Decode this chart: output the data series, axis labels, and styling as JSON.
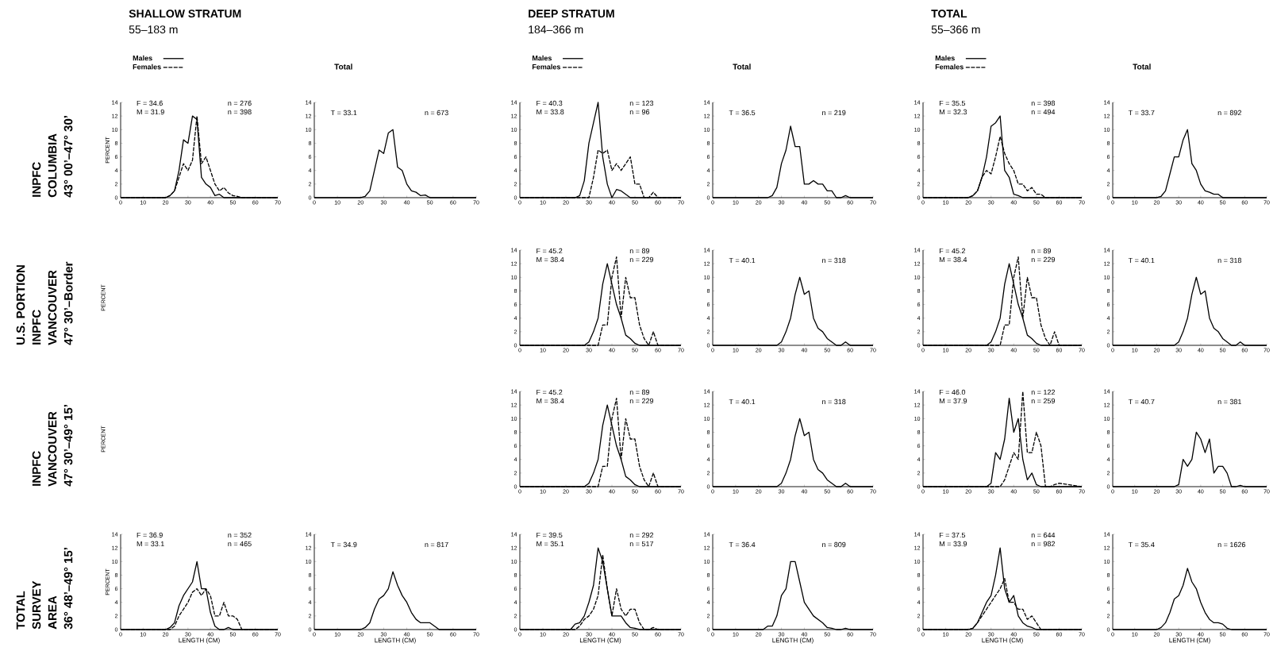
{
  "chart_data": [
    {
      "type": "other",
      "annotations": [
        "INPFC",
        "COLUMBIA",
        "43° 00’–47° 30’"
      ]
    },
    {
      "type": "line",
      "title": "SHALLOW STRATUM",
      "subtitle": "55–183 m",
      "ylabel": "PERCENT",
      "legend": "top left",
      "xlim": [
        0,
        70
      ],
      "ylim": [
        0,
        14
      ],
      "xticks": [
        0,
        10,
        20,
        30,
        40,
        50,
        60,
        70
      ],
      "yticks": [
        0,
        2,
        4,
        6,
        8,
        10,
        12,
        14
      ],
      "annotations": [
        "F = 34.6",
        "M = 31.9",
        "n = 276",
        "n = 398"
      ],
      "x": [
        0,
        20,
        22,
        24,
        26,
        28,
        30,
        32,
        34,
        36,
        38,
        40,
        42,
        44,
        46,
        48,
        50,
        52,
        54,
        56,
        58,
        60,
        70
      ],
      "series": [
        {
          "name": "Males",
          "color": "#000000",
          "line_style": "solid",
          "values": [
            0,
            0,
            0.3,
            1,
            4,
            8.5,
            8,
            12,
            11.5,
            3,
            2,
            1.5,
            0.3,
            0.5,
            0,
            0,
            0,
            0,
            0,
            0,
            0,
            0,
            0
          ]
        },
        {
          "name": "Females",
          "color": "#000000",
          "line_style": "dashed",
          "values": [
            0,
            0,
            0.3,
            1,
            3,
            5,
            4,
            5.5,
            12,
            5,
            6,
            4,
            2,
            1,
            1.5,
            0.7,
            0.3,
            0.2,
            0,
            0,
            0,
            0,
            0
          ]
        }
      ]
    },
    {
      "type": "line",
      "title": "Total",
      "xlim": [
        0,
        70
      ],
      "ylim": [
        0,
        14
      ],
      "xticks": [
        0,
        10,
        20,
        30,
        40,
        50,
        60,
        70
      ],
      "yticks": [
        0,
        2,
        4,
        6,
        8,
        10,
        12,
        14
      ],
      "annotations": [
        "T = 33.1",
        "n = 673"
      ],
      "x": [
        0,
        20,
        22,
        24,
        26,
        28,
        30,
        32,
        34,
        36,
        38,
        40,
        42,
        44,
        46,
        48,
        50,
        52,
        54,
        56,
        58,
        60,
        70
      ],
      "series": [
        {
          "color": "#000000",
          "line_style": "solid",
          "values": [
            0,
            0,
            0.2,
            1,
            4,
            7,
            6.5,
            9.5,
            10,
            4.5,
            4,
            2,
            1,
            0.8,
            0.3,
            0.4,
            0,
            0,
            0,
            0,
            0,
            0,
            0
          ]
        }
      ]
    },
    {
      "type": "line",
      "title": "DEEP STRATUM",
      "subtitle": "184–366 m",
      "legend": "top left",
      "xlim": [
        0,
        70
      ],
      "ylim": [
        0,
        14
      ],
      "xticks": [
        0,
        10,
        20,
        30,
        40,
        50,
        60,
        70
      ],
      "yticks": [
        0,
        2,
        4,
        6,
        8,
        10,
        12,
        14
      ],
      "annotations": [
        "F = 40.3",
        "M = 33.8",
        "n = 123",
        "n = 96"
      ],
      "x": [
        0,
        20,
        22,
        24,
        26,
        28,
        30,
        32,
        34,
        36,
        38,
        40,
        42,
        44,
        46,
        48,
        50,
        52,
        54,
        56,
        58,
        60,
        70
      ],
      "series": [
        {
          "name": "Males",
          "color": "#000000",
          "line_style": "solid",
          "values": [
            0,
            0,
            0,
            0,
            0.3,
            2.5,
            8,
            11,
            14,
            6,
            2,
            0,
            1.2,
            1,
            0.5,
            0,
            0,
            0,
            0,
            0,
            0,
            0,
            0
          ]
        },
        {
          "name": "Females",
          "color": "#000000",
          "line_style": "dashed",
          "values": [
            0,
            0,
            0,
            0,
            0,
            0,
            0,
            3,
            7,
            6.5,
            7,
            4,
            5,
            4,
            5,
            6,
            2,
            2,
            0,
            0,
            0.8,
            0,
            0
          ]
        }
      ]
    },
    {
      "type": "line",
      "title": "Total",
      "xlim": [
        0,
        70
      ],
      "ylim": [
        0,
        14
      ],
      "xticks": [
        0,
        10,
        20,
        30,
        40,
        50,
        60,
        70
      ],
      "yticks": [
        0,
        2,
        4,
        6,
        8,
        10,
        12,
        14
      ],
      "annotations": [
        "T = 36.5",
        "n = 219"
      ],
      "x": [
        0,
        20,
        22,
        24,
        26,
        28,
        30,
        32,
        34,
        36,
        38,
        40,
        42,
        44,
        46,
        48,
        50,
        52,
        54,
        56,
        58,
        60,
        70
      ],
      "series": [
        {
          "color": "#000000",
          "line_style": "solid",
          "values": [
            0,
            0,
            0,
            0,
            0.3,
            1.5,
            5,
            7,
            10.5,
            7.5,
            7.5,
            2,
            2,
            2.5,
            2,
            2,
            1,
            1,
            0,
            0,
            0.3,
            0,
            0
          ]
        }
      ]
    },
    {
      "type": "line",
      "title": "TOTAL",
      "subtitle": "55–366 m",
      "legend": "top left",
      "xlim": [
        0,
        70
      ],
      "ylim": [
        0,
        14
      ],
      "xticks": [
        0,
        10,
        20,
        30,
        40,
        50,
        60,
        70
      ],
      "yticks": [
        0,
        2,
        4,
        6,
        8,
        10,
        12,
        14
      ],
      "annotations": [
        "F = 35.5",
        "M = 32.3",
        "n = 398",
        "n = 494"
      ],
      "x": [
        0,
        20,
        22,
        24,
        26,
        28,
        30,
        32,
        34,
        36,
        38,
        40,
        42,
        44,
        46,
        48,
        50,
        52,
        54,
        56,
        58,
        60,
        70
      ],
      "series": [
        {
          "name": "Males",
          "color": "#000000",
          "line_style": "solid",
          "values": [
            0,
            0,
            0.3,
            1,
            3,
            6,
            10.5,
            11,
            12,
            4,
            3,
            0.5,
            0.3,
            0,
            0,
            0,
            0,
            0,
            0,
            0,
            0,
            0,
            0
          ]
        },
        {
          "name": "Females",
          "color": "#000000",
          "line_style": "dashed",
          "values": [
            0,
            0,
            0.3,
            1,
            3,
            4,
            3.5,
            6,
            9,
            6.5,
            5,
            4,
            2,
            2,
            1,
            1.5,
            0.5,
            0.5,
            0,
            0,
            0,
            0,
            0
          ]
        }
      ]
    },
    {
      "type": "line",
      "title": "Total",
      "xlim": [
        0,
        70
      ],
      "ylim": [
        0,
        14
      ],
      "xticks": [
        0,
        10,
        20,
        30,
        40,
        50,
        60,
        70
      ],
      "yticks": [
        0,
        2,
        4,
        6,
        8,
        10,
        12,
        14
      ],
      "annotations": [
        "T = 33.7",
        "n = 892"
      ],
      "x": [
        0,
        20,
        22,
        24,
        26,
        28,
        30,
        32,
        34,
        36,
        38,
        40,
        42,
        44,
        46,
        48,
        50,
        52,
        54,
        56,
        58,
        60,
        70
      ],
      "series": [
        {
          "color": "#000000",
          "line_style": "solid",
          "values": [
            0,
            0,
            0.2,
            1,
            3.5,
            6,
            6,
            8.5,
            10,
            5,
            4,
            2,
            1,
            0.8,
            0.5,
            0.5,
            0,
            0,
            0,
            0,
            0,
            0,
            0
          ]
        }
      ]
    },
    {
      "type": "other",
      "annotations": [
        "U.S. PORTION",
        "INPFC",
        "VANCOUVER",
        "47° 30’–Border"
      ]
    },
    {
      "type": "other",
      "ylabel": "PERCENT"
    },
    {
      "type": "line",
      "xlim": [
        0,
        70
      ],
      "ylim": [
        0,
        14
      ],
      "xticks": [
        0,
        10,
        20,
        30,
        40,
        50,
        60,
        70
      ],
      "yticks": [
        0,
        2,
        4,
        6,
        8,
        10,
        12,
        14
      ],
      "annotations": [
        "F = 45.2",
        "M = 38.4",
        "n = 89",
        "n = 229"
      ],
      "x": [
        0,
        20,
        22,
        24,
        26,
        28,
        30,
        32,
        34,
        36,
        38,
        40,
        42,
        44,
        46,
        48,
        50,
        52,
        54,
        56,
        58,
        60,
        70
      ],
      "series": [
        {
          "color": "#000000",
          "line_style": "solid",
          "values": [
            0,
            0,
            0,
            0,
            0,
            0,
            0.5,
            2,
            4,
            9,
            12,
            9,
            6,
            4,
            1.5,
            1,
            0.3,
            0,
            0,
            0,
            0,
            0,
            0
          ]
        },
        {
          "color": "#000000",
          "line_style": "dashed",
          "values": [
            0,
            0,
            0,
            0,
            0,
            0,
            0,
            0,
            0,
            3,
            3,
            10,
            13,
            4,
            10,
            7,
            7,
            3,
            1,
            0,
            2,
            0,
            0
          ]
        }
      ]
    },
    {
      "type": "line",
      "xlim": [
        0,
        70
      ],
      "ylim": [
        0,
        14
      ],
      "xticks": [
        0,
        10,
        20,
        30,
        40,
        50,
        60,
        70
      ],
      "yticks": [
        0,
        2,
        4,
        6,
        8,
        10,
        12,
        14
      ],
      "annotations": [
        "T = 40.1",
        "n = 318"
      ],
      "x": [
        0,
        20,
        22,
        24,
        26,
        28,
        30,
        32,
        34,
        36,
        38,
        40,
        42,
        44,
        46,
        48,
        50,
        52,
        54,
        56,
        58,
        60,
        70
      ],
      "series": [
        {
          "color": "#000000",
          "line_style": "solid",
          "values": [
            0,
            0,
            0,
            0,
            0,
            0,
            0.5,
            2,
            4,
            7.5,
            10,
            7.5,
            8,
            4,
            2.5,
            2,
            1,
            0.5,
            0,
            0,
            0.5,
            0,
            0
          ]
        }
      ]
    },
    {
      "type": "line",
      "xlim": [
        0,
        70
      ],
      "ylim": [
        0,
        14
      ],
      "xticks": [
        0,
        10,
        20,
        30,
        40,
        50,
        60,
        70
      ],
      "yticks": [
        0,
        2,
        4,
        6,
        8,
        10,
        12,
        14
      ],
      "annotations": [
        "F = 45.2",
        "M = 38.4",
        "n = 89",
        "n = 229"
      ],
      "x": [
        0,
        20,
        22,
        24,
        26,
        28,
        30,
        32,
        34,
        36,
        38,
        40,
        42,
        44,
        46,
        48,
        50,
        52,
        54,
        56,
        58,
        60,
        70
      ],
      "series": [
        {
          "color": "#000000",
          "line_style": "solid",
          "values": [
            0,
            0,
            0,
            0,
            0,
            0,
            0.5,
            2,
            4,
            9,
            12,
            9,
            6,
            4,
            1.5,
            1,
            0.3,
            0,
            0,
            0,
            0,
            0,
            0
          ]
        },
        {
          "color": "#000000",
          "line_style": "dashed",
          "values": [
            0,
            0,
            0,
            0,
            0,
            0,
            0,
            0,
            0,
            3,
            3,
            10,
            13,
            4,
            10,
            7,
            7,
            3,
            1,
            0,
            2,
            0,
            0
          ]
        }
      ]
    },
    {
      "type": "line",
      "xlim": [
        0,
        70
      ],
      "ylim": [
        0,
        14
      ],
      "xticks": [
        0,
        10,
        20,
        30,
        40,
        50,
        60,
        70
      ],
      "yticks": [
        0,
        2,
        4,
        6,
        8,
        10,
        12,
        14
      ],
      "annotations": [
        "T = 40.1",
        "n = 318"
      ],
      "x": [
        0,
        20,
        22,
        24,
        26,
        28,
        30,
        32,
        34,
        36,
        38,
        40,
        42,
        44,
        46,
        48,
        50,
        52,
        54,
        56,
        58,
        60,
        70
      ],
      "series": [
        {
          "color": "#000000",
          "line_style": "solid",
          "values": [
            0,
            0,
            0,
            0,
            0,
            0,
            0.5,
            2,
            4,
            7.5,
            10,
            7.5,
            8,
            4,
            2.5,
            2,
            1,
            0.5,
            0,
            0,
            0.5,
            0,
            0
          ]
        }
      ]
    },
    {
      "type": "other",
      "annotations": [
        "INPFC",
        "VANCOUVER",
        "47° 30’–49° 15’"
      ]
    },
    {
      "type": "other",
      "ylabel": "PERCENT"
    },
    {
      "type": "line",
      "xlim": [
        0,
        70
      ],
      "ylim": [
        0,
        14
      ],
      "xticks": [
        0,
        10,
        20,
        30,
        40,
        50,
        60,
        70
      ],
      "yticks": [
        0,
        2,
        4,
        6,
        8,
        10,
        12,
        14
      ],
      "annotations": [
        "F = 45.2",
        "M = 38.4",
        "n = 89",
        "n = 229"
      ],
      "x": [
        0,
        20,
        22,
        24,
        26,
        28,
        30,
        32,
        34,
        36,
        38,
        40,
        42,
        44,
        46,
        48,
        50,
        52,
        54,
        56,
        58,
        60,
        70
      ],
      "series": [
        {
          "color": "#000000",
          "line_style": "solid",
          "values": [
            0,
            0,
            0,
            0,
            0,
            0,
            0.5,
            2,
            4,
            9,
            12,
            9,
            6,
            4,
            1.5,
            1,
            0.3,
            0,
            0,
            0,
            0,
            0,
            0
          ]
        },
        {
          "color": "#000000",
          "line_style": "dashed",
          "values": [
            0,
            0,
            0,
            0,
            0,
            0,
            0,
            0,
            0,
            3,
            3,
            10,
            13,
            4,
            10,
            7,
            7,
            3,
            1,
            0,
            2,
            0,
            0
          ]
        }
      ]
    },
    {
      "type": "line",
      "xlim": [
        0,
        70
      ],
      "ylim": [
        0,
        14
      ],
      "xticks": [
        0,
        10,
        20,
        30,
        40,
        50,
        60,
        70
      ],
      "yticks": [
        0,
        2,
        4,
        6,
        8,
        10,
        12,
        14
      ],
      "annotations": [
        "T = 40.1",
        "n = 318"
      ],
      "x": [
        0,
        20,
        22,
        24,
        26,
        28,
        30,
        32,
        34,
        36,
        38,
        40,
        42,
        44,
        46,
        48,
        50,
        52,
        54,
        56,
        58,
        60,
        70
      ],
      "series": [
        {
          "color": "#000000",
          "line_style": "solid",
          "values": [
            0,
            0,
            0,
            0,
            0,
            0,
            0.5,
            2,
            4,
            7.5,
            10,
            7.5,
            8,
            4,
            2.5,
            2,
            1,
            0.5,
            0,
            0,
            0.5,
            0,
            0
          ]
        }
      ]
    },
    {
      "type": "line",
      "xlim": [
        0,
        70
      ],
      "ylim": [
        0,
        14
      ],
      "xticks": [
        0,
        10,
        20,
        30,
        40,
        50,
        60,
        70
      ],
      "yticks": [
        0,
        2,
        4,
        6,
        8,
        10,
        12,
        14
      ],
      "annotations": [
        "F = 46.0",
        "M = 37.9",
        "n = 122",
        "n = 259"
      ],
      "x": [
        0,
        20,
        22,
        24,
        26,
        28,
        30,
        32,
        34,
        36,
        38,
        40,
        42,
        44,
        46,
        48,
        50,
        52,
        54,
        56,
        58,
        60,
        70
      ],
      "series": [
        {
          "color": "#000000",
          "line_style": "solid",
          "values": [
            0,
            0,
            0,
            0,
            0,
            0,
            0.5,
            5,
            4,
            7,
            13,
            8,
            10,
            4,
            1,
            2,
            0.3,
            0,
            0,
            0,
            0,
            0,
            0
          ]
        },
        {
          "color": "#000000",
          "line_style": "dashed",
          "values": [
            0,
            0,
            0,
            0,
            0,
            0,
            0,
            0,
            0,
            1,
            3,
            5,
            4,
            14,
            5,
            5,
            8,
            6,
            0,
            0,
            0.3,
            0.5,
            0
          ]
        }
      ]
    },
    {
      "type": "line",
      "xlim": [
        0,
        70
      ],
      "ylim": [
        0,
        14
      ],
      "xticks": [
        0,
        10,
        20,
        30,
        40,
        50,
        60,
        70
      ],
      "yticks": [
        0,
        2,
        4,
        6,
        8,
        10,
        12,
        14
      ],
      "annotations": [
        "T = 40.7",
        "n = 381"
      ],
      "x": [
        0,
        20,
        22,
        24,
        26,
        28,
        30,
        32,
        34,
        36,
        38,
        40,
        42,
        44,
        46,
        48,
        50,
        52,
        54,
        56,
        58,
        60,
        70
      ],
      "series": [
        {
          "color": "#000000",
          "line_style": "solid",
          "values": [
            0,
            0,
            0,
            0,
            0,
            0,
            0.3,
            4,
            3,
            4,
            8,
            7,
            5,
            7,
            2,
            3,
            3,
            2,
            0,
            0,
            0.2,
            0,
            0
          ]
        }
      ]
    },
    {
      "type": "other",
      "annotations": [
        "TOTAL",
        "SURVEY",
        "AREA",
        "36° 48’–49° 15’"
      ]
    },
    {
      "type": "line",
      "xlabel": "LENGTH (CM)",
      "ylabel": "PERCENT",
      "xlim": [
        0,
        70
      ],
      "ylim": [
        0,
        14
      ],
      "xticks": [
        0,
        10,
        20,
        30,
        40,
        50,
        60,
        70
      ],
      "yticks": [
        0,
        2,
        4,
        6,
        8,
        10,
        12,
        14
      ],
      "annotations": [
        "F = 36.9",
        "M = 33.1",
        "n = 352",
        "n = 465"
      ],
      "x": [
        0,
        20,
        22,
        24,
        26,
        28,
        30,
        32,
        34,
        36,
        38,
        40,
        42,
        44,
        46,
        48,
        50,
        52,
        54,
        56,
        58,
        60,
        70
      ],
      "series": [
        {
          "color": "#000000",
          "line_style": "solid",
          "values": [
            0,
            0,
            0.3,
            1,
            3.5,
            5,
            6,
            7,
            10,
            6,
            6,
            2.5,
            0.5,
            0,
            0,
            0.3,
            0,
            0,
            0,
            0,
            0,
            0,
            0
          ]
        },
        {
          "color": "#000000",
          "line_style": "dashed",
          "values": [
            0,
            0,
            0,
            0.5,
            2,
            3,
            4,
            5.5,
            6,
            5,
            6,
            5,
            2,
            2,
            4,
            2,
            2,
            1.5,
            0,
            0,
            0,
            0,
            0
          ]
        }
      ]
    },
    {
      "type": "line",
      "xlabel": "LENGTH (CM)",
      "xlim": [
        0,
        70
      ],
      "ylim": [
        0,
        14
      ],
      "xticks": [
        0,
        10,
        20,
        30,
        40,
        50,
        60,
        70
      ],
      "yticks": [
        0,
        2,
        4,
        6,
        8,
        10,
        12,
        14
      ],
      "annotations": [
        "T = 34.9",
        "n = 817"
      ],
      "x": [
        0,
        20,
        22,
        24,
        26,
        28,
        30,
        32,
        34,
        36,
        38,
        40,
        42,
        44,
        46,
        48,
        50,
        52,
        54,
        56,
        58,
        60,
        70
      ],
      "series": [
        {
          "color": "#000000",
          "line_style": "solid",
          "values": [
            0,
            0,
            0.3,
            1,
            3,
            4.5,
            5,
            6,
            8.5,
            6.5,
            5,
            4,
            2.5,
            1.5,
            1,
            1,
            1,
            0.5,
            0,
            0,
            0,
            0,
            0
          ]
        }
      ]
    },
    {
      "type": "line",
      "xlabel": "LENGTH (CM)",
      "xlim": [
        0,
        70
      ],
      "ylim": [
        0,
        14
      ],
      "xticks": [
        0,
        10,
        20,
        30,
        40,
        50,
        60,
        70
      ],
      "yticks": [
        0,
        2,
        4,
        6,
        8,
        10,
        12,
        14
      ],
      "annotations": [
        "F = 39.5",
        "M = 35.1",
        "n = 292",
        "n = 517"
      ],
      "x": [
        0,
        20,
        22,
        24,
        26,
        28,
        30,
        32,
        34,
        36,
        38,
        40,
        42,
        44,
        46,
        48,
        50,
        52,
        54,
        56,
        58,
        60,
        70
      ],
      "series": [
        {
          "color": "#000000",
          "line_style": "solid",
          "values": [
            0,
            0,
            0,
            0.8,
            1,
            2,
            4,
            6.5,
            12,
            10,
            6,
            2,
            2,
            2,
            1,
            0.3,
            0.2,
            0,
            0,
            0,
            0,
            0,
            0
          ]
        },
        {
          "color": "#000000",
          "line_style": "dashed",
          "values": [
            0,
            0,
            0,
            0,
            0.5,
            1.5,
            2,
            3,
            5,
            11,
            6,
            2,
            6,
            3,
            2,
            3,
            3,
            1,
            0,
            0,
            0.3,
            0,
            0
          ]
        }
      ]
    },
    {
      "type": "line",
      "xlabel": "LENGTH (CM)",
      "xlim": [
        0,
        70
      ],
      "ylim": [
        0,
        14
      ],
      "xticks": [
        0,
        10,
        20,
        30,
        40,
        50,
        60,
        70
      ],
      "yticks": [
        0,
        2,
        4,
        6,
        8,
        10,
        12,
        14
      ],
      "annotations": [
        "T = 36.4",
        "n = 809"
      ],
      "x": [
        0,
        20,
        22,
        24,
        26,
        28,
        30,
        32,
        34,
        36,
        38,
        40,
        42,
        44,
        46,
        48,
        50,
        52,
        54,
        56,
        58,
        60,
        70
      ],
      "series": [
        {
          "color": "#000000",
          "line_style": "solid",
          "values": [
            0,
            0,
            0,
            0.5,
            0.5,
            2,
            5,
            6,
            10,
            10,
            7,
            4,
            3,
            2,
            1.5,
            1,
            0.3,
            0.2,
            0,
            0,
            0.2,
            0,
            0
          ]
        }
      ]
    },
    {
      "type": "line",
      "xlabel": "LENGTH (CM)",
      "xlim": [
        0,
        70
      ],
      "ylim": [
        0,
        14
      ],
      "xticks": [
        0,
        10,
        20,
        30,
        40,
        50,
        60,
        70
      ],
      "yticks": [
        0,
        2,
        4,
        6,
        8,
        10,
        12,
        14
      ],
      "annotations": [
        "F = 37.5",
        "M = 33.9",
        "n = 644",
        "n = 982"
      ],
      "x": [
        0,
        20,
        22,
        24,
        26,
        28,
        30,
        32,
        34,
        36,
        38,
        40,
        42,
        44,
        46,
        48,
        50,
        52,
        54,
        56,
        58,
        60,
        70
      ],
      "series": [
        {
          "color": "#000000",
          "line_style": "solid",
          "values": [
            0,
            0,
            0.2,
            1,
            2.5,
            4,
            5,
            8,
            12,
            6,
            4,
            5,
            2,
            1,
            0.5,
            0.3,
            0,
            0,
            0,
            0,
            0,
            0,
            0
          ]
        },
        {
          "color": "#000000",
          "line_style": "dashed",
          "values": [
            0,
            0,
            0.2,
            1,
            2,
            3,
            4,
            5,
            6,
            7.5,
            4,
            4,
            3,
            3,
            1.5,
            2,
            1,
            0,
            0,
            0,
            0,
            0,
            0
          ]
        }
      ]
    },
    {
      "type": "line",
      "xlabel": "LENGTH (CM)",
      "xlim": [
        0,
        70
      ],
      "ylim": [
        0,
        14
      ],
      "xticks": [
        0,
        10,
        20,
        30,
        40,
        50,
        60,
        70
      ],
      "yticks": [
        0,
        2,
        4,
        6,
        8,
        10,
        12,
        14
      ],
      "annotations": [
        "T = 35.4",
        "n = 1626"
      ],
      "x": [
        0,
        20,
        22,
        24,
        26,
        28,
        30,
        32,
        34,
        36,
        38,
        40,
        42,
        44,
        46,
        48,
        50,
        52,
        54,
        56,
        58,
        60,
        70
      ],
      "series": [
        {
          "color": "#000000",
          "line_style": "solid",
          "values": [
            0,
            0,
            0.3,
            1,
            2.5,
            4.5,
            5,
            6.5,
            9,
            7,
            6,
            4,
            2.5,
            1.5,
            1,
            1,
            0.8,
            0.2,
            0,
            0,
            0,
            0,
            0
          ]
        }
      ]
    }
  ]
}
